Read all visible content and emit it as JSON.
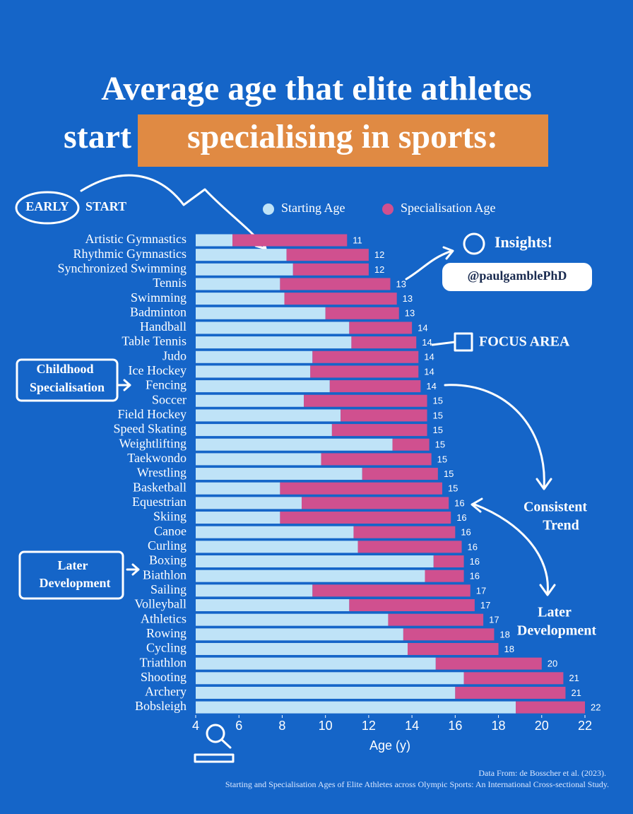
{
  "chart_data": {
    "type": "range-bar",
    "title": "Average age that elite athletes",
    "title_line2": "start",
    "title_highlight": "specialising in sports:",
    "categories": [
      "Artistic Gymnastics",
      "Rhythmic Gymnastics",
      "Synchronized Swimming",
      "Tennis",
      "Swimming",
      "Badminton",
      "Handball",
      "Table Tennis",
      "Judo",
      "Ice Hockey",
      "Fencing",
      "Soccer",
      "Field Hockey",
      "Speed Skating",
      "Weightlifting",
      "Taekwondo",
      "Wrestling",
      "Basketball",
      "Equestrian",
      "Skiing",
      "Canoe",
      "Curling",
      "Boxing",
      "Biathlon",
      "Sailing",
      "Volleyball",
      "Athletics",
      "Rowing",
      "Cycling",
      "Triathlon",
      "Shooting",
      "Archery",
      "Bobsleigh"
    ],
    "series": [
      {
        "name": "Starting Age",
        "color": "#bfe3f7",
        "values": [
          5.7,
          8.2,
          8.5,
          7.9,
          8.1,
          10.0,
          11.1,
          11.2,
          9.4,
          9.3,
          10.2,
          9.0,
          10.7,
          10.3,
          13.1,
          9.8,
          11.7,
          7.9,
          8.9,
          7.9,
          11.3,
          11.5,
          15.0,
          14.6,
          9.4,
          11.1,
          12.9,
          13.6,
          13.8,
          15.1,
          16.4,
          16.0,
          18.8
        ]
      },
      {
        "name": "Specialisation Age",
        "color": "#d0508f",
        "values": [
          11.0,
          12.0,
          12.0,
          13.0,
          13.3,
          13.4,
          14.0,
          14.2,
          14.3,
          14.3,
          14.4,
          14.7,
          14.7,
          14.7,
          14.8,
          14.9,
          15.2,
          15.4,
          15.7,
          15.8,
          16.0,
          16.3,
          16.4,
          16.4,
          16.7,
          16.9,
          17.3,
          17.8,
          18.0,
          20.0,
          21.0,
          21.1,
          22.0
        ],
        "value_labels": [
          "11",
          "12",
          "12",
          "13",
          "13",
          "13",
          "14",
          "14",
          "14",
          "14",
          "14",
          "15",
          "15",
          "15",
          "15",
          "15",
          "15",
          "15",
          "16",
          "16",
          "16",
          "16",
          "16",
          "16",
          "17",
          "17",
          "17",
          "18",
          "18",
          "20",
          "21",
          "21",
          "22"
        ]
      }
    ],
    "xlim": [
      4,
      22
    ],
    "xticks": [
      4,
      6,
      8,
      10,
      12,
      14,
      16,
      18,
      20,
      22
    ],
    "xlabel": "Age (y)",
    "annotations": [
      "EARLY",
      "START",
      "Insights!",
      "@paulgamblePhD",
      "FOCUS AREA",
      "Childhood",
      "Specialisation",
      "Later",
      "Development",
      "Consistent",
      "Trend",
      "Later",
      "Development"
    ],
    "source": [
      "Data From: de Bosscher et al. (2023).",
      "Starting and Specialisation Ages of Elite Athletes across Olympic Sports: An International Cross-sectional Study."
    ]
  }
}
